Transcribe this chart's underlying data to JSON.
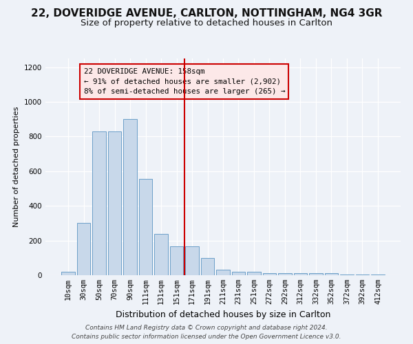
{
  "title1": "22, DOVERIDGE AVENUE, CARLTON, NOTTINGHAM, NG4 3GR",
  "title2": "Size of property relative to detached houses in Carlton",
  "xlabel": "Distribution of detached houses by size in Carlton",
  "ylabel": "Number of detached properties",
  "footer1": "Contains HM Land Registry data © Crown copyright and database right 2024.",
  "footer2": "Contains public sector information licensed under the Open Government Licence v3.0.",
  "categories": [
    "10sqm",
    "30sqm",
    "50sqm",
    "70sqm",
    "90sqm",
    "111sqm",
    "131sqm",
    "151sqm",
    "171sqm",
    "191sqm",
    "211sqm",
    "231sqm",
    "251sqm",
    "272sqm",
    "292sqm",
    "312sqm",
    "332sqm",
    "352sqm",
    "372sqm",
    "392sqm",
    "412sqm"
  ],
  "values": [
    20,
    300,
    830,
    830,
    900,
    555,
    238,
    165,
    165,
    100,
    32,
    20,
    20,
    10,
    10,
    10,
    10,
    10,
    5,
    5,
    5
  ],
  "bar_color": "#c8d8ea",
  "bar_edge_color": "#6b9ec8",
  "background_color": "#eef2f8",
  "grid_color": "#ffffff",
  "annotation_line1": "22 DOVERIDGE AVENUE: 158sqm",
  "annotation_line2": "← 91% of detached houses are smaller (2,902)",
  "annotation_line3": "8% of semi-detached houses are larger (265) →",
  "vline_x": 7.5,
  "vline_color": "#cc0000",
  "annotation_box_facecolor": "#fce8e8",
  "annotation_box_edgecolor": "#cc0000",
  "ylim": [
    0,
    1250
  ],
  "yticks": [
    0,
    200,
    400,
    600,
    800,
    1000,
    1200
  ],
  "title1_fontsize": 11,
  "title2_fontsize": 9.5,
  "xlabel_fontsize": 9,
  "ylabel_fontsize": 8,
  "tick_fontsize": 7.5,
  "annotation_fontsize": 7.8,
  "footer_fontsize": 6.5
}
